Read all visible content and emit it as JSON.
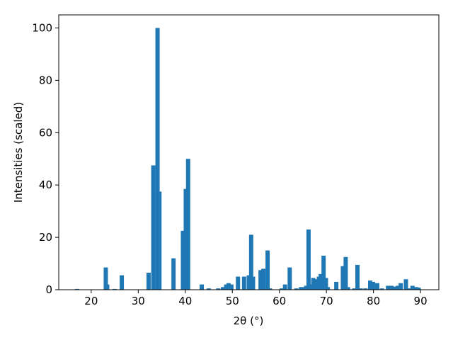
{
  "chart_data": {
    "type": "bar",
    "x_label": "2θ (°)",
    "y_label": "Intensities (scaled)",
    "x": [
      17,
      23.1,
      23.4,
      25,
      26.5,
      32.2,
      33.2,
      34.1,
      34.5,
      37.5,
      39.5,
      40.1,
      40.6,
      43.5,
      45,
      47,
      48,
      48.7,
      49.2,
      49.8,
      51.2,
      52.5,
      53.5,
      54,
      54.4,
      56,
      56.6,
      57.5,
      58,
      60.5,
      61.2,
      62.2,
      63.6,
      64.6,
      65.2,
      65.7,
      66.2,
      66.6,
      67.2,
      67.7,
      68.4,
      68.8,
      69.4,
      69.9,
      70.3,
      72.1,
      73.5,
      74.1,
      74.6,
      75.9,
      76.6,
      77.3,
      78.3,
      79.3,
      79.9,
      80.8,
      81.8,
      83.1,
      83.8,
      84.5,
      85.2,
      85.8,
      86.9,
      87.5,
      88.3,
      89.1,
      89.6
    ],
    "values": [
      0.3,
      8.5,
      2,
      0.3,
      5.5,
      6.5,
      47.5,
      100,
      37.5,
      12,
      22.5,
      38.5,
      50,
      2,
      0.5,
      0.5,
      1,
      2,
      2.5,
      2,
      5,
      5,
      5.5,
      21,
      5,
      7.5,
      8,
      15,
      0.5,
      0.5,
      2,
      8.5,
      0.5,
      1,
      1,
      1.5,
      23,
      2,
      4.5,
      4,
      5,
      6,
      13,
      4.5,
      1,
      3,
      9,
      12.5,
      1,
      0.5,
      9.5,
      0.5,
      0.5,
      3.5,
      3,
      2.5,
      0.5,
      1.5,
      1.5,
      1.2,
      1.5,
      2.5,
      4,
      0.5,
      1.5,
      1,
      0.8
    ],
    "color": "#1f77b4",
    "xlim": [
      13.1,
      93.9
    ],
    "xticks": [
      20,
      30,
      40,
      50,
      60,
      70,
      80,
      90
    ],
    "ylim": [
      0,
      105
    ],
    "yticks": [
      0,
      20,
      40,
      60,
      80,
      100
    ]
  }
}
